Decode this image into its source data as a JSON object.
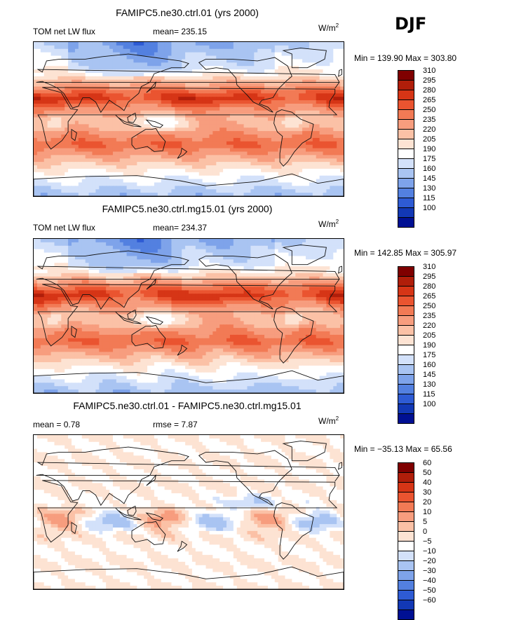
{
  "season": "DJF",
  "units_main": "W/m",
  "units_exp": "2",
  "panels": [
    {
      "title": "FAMIPC5.ne30.ctrl.01 (yrs 2000)",
      "variable": "TOM net LW flux",
      "stat_text": "mean= 235.15",
      "minmax": "Min = 139.90 Max = 303.80"
    },
    {
      "title": "FAMIPC5.ne30.ctrl.mg15.01 (yrs 2000)",
      "variable": "TOM net LW flux",
      "stat_text": "mean= 234.37",
      "minmax": "Min = 142.85 Max = 305.97"
    },
    {
      "title": "FAMIPC5.ne30.ctrl.01 - FAMIPC5.ne30.ctrl.mg15.01",
      "stat1": "mean =    0.78",
      "stat2": "rmse =    7.87",
      "minmax": "Min = −35.13 Max =  65.56"
    }
  ],
  "chart_data": [
    {
      "type": "heatmap",
      "title": "FAMIPC5.ne30.ctrl.01 (yrs 2000)",
      "variable": "TOM net LW flux",
      "units": "W/m2",
      "mean": 235.15,
      "min": 139.9,
      "max": 303.8,
      "contour_levels": [
        100,
        115,
        130,
        145,
        160,
        175,
        190,
        205,
        220,
        235,
        250,
        265,
        280,
        295,
        310
      ],
      "colorbar_labels": [
        "310",
        "295",
        "280",
        "265",
        "250",
        "235",
        "220",
        "205",
        "190",
        "175",
        "160",
        "145",
        "130",
        "115",
        "100"
      ],
      "colors": [
        "#7f0000",
        "#b01e0a",
        "#d63516",
        "#ea5430",
        "#f27a55",
        "#f79d7e",
        "#fbc1a6",
        "#fde3d3",
        "#ffffff",
        "#d3e1fa",
        "#a9c4f2",
        "#7ea3ea",
        "#5380e0",
        "#2e5bd4",
        "#1238b5",
        "#001093"
      ],
      "description_zonal_profile_deg_lat": [
        -90,
        -60,
        -30,
        -10,
        0,
        10,
        25,
        45,
        60,
        90
      ],
      "description_zonal_profile_values": [
        165,
        205,
        265,
        240,
        235,
        245,
        285,
        225,
        185,
        160
      ]
    },
    {
      "type": "heatmap",
      "title": "FAMIPC5.ne30.ctrl.mg15.01 (yrs 2000)",
      "variable": "TOM net LW flux",
      "units": "W/m2",
      "mean": 234.37,
      "min": 142.85,
      "max": 305.97,
      "contour_levels": [
        100,
        115,
        130,
        145,
        160,
        175,
        190,
        205,
        220,
        235,
        250,
        265,
        280,
        295,
        310
      ],
      "colorbar_labels": [
        "310",
        "295",
        "280",
        "265",
        "250",
        "235",
        "220",
        "205",
        "190",
        "175",
        "160",
        "145",
        "130",
        "115",
        "100"
      ],
      "colors": [
        "#7f0000",
        "#b01e0a",
        "#d63516",
        "#ea5430",
        "#f27a55",
        "#f79d7e",
        "#fbc1a6",
        "#fde3d3",
        "#ffffff",
        "#d3e1fa",
        "#a9c4f2",
        "#7ea3ea",
        "#5380e0",
        "#2e5bd4",
        "#1238b5",
        "#001093"
      ]
    },
    {
      "type": "heatmap",
      "title": "FAMIPC5.ne30.ctrl.01 - FAMIPC5.ne30.ctrl.mg15.01",
      "units": "W/m2",
      "mean": 0.78,
      "rmse": 7.87,
      "min": -35.13,
      "max": 65.56,
      "contour_levels": [
        -60,
        -50,
        -40,
        -30,
        -20,
        -10,
        -5,
        0,
        5,
        10,
        20,
        30,
        40,
        50,
        60
      ],
      "colorbar_labels": [
        "60",
        "50",
        "40",
        "30",
        "20",
        "10",
        "5",
        "0",
        "−5",
        "−10",
        "−20",
        "−30",
        "−40",
        "−50",
        "−60"
      ],
      "colors": [
        "#7f0000",
        "#b01e0a",
        "#d63516",
        "#ea5430",
        "#f27a55",
        "#f79d7e",
        "#fbc1a6",
        "#fde3d3",
        "#ffffff",
        "#d3e1fa",
        "#a9c4f2",
        "#7ea3ea",
        "#5380e0",
        "#2e5bd4",
        "#1238b5",
        "#001093"
      ]
    }
  ]
}
